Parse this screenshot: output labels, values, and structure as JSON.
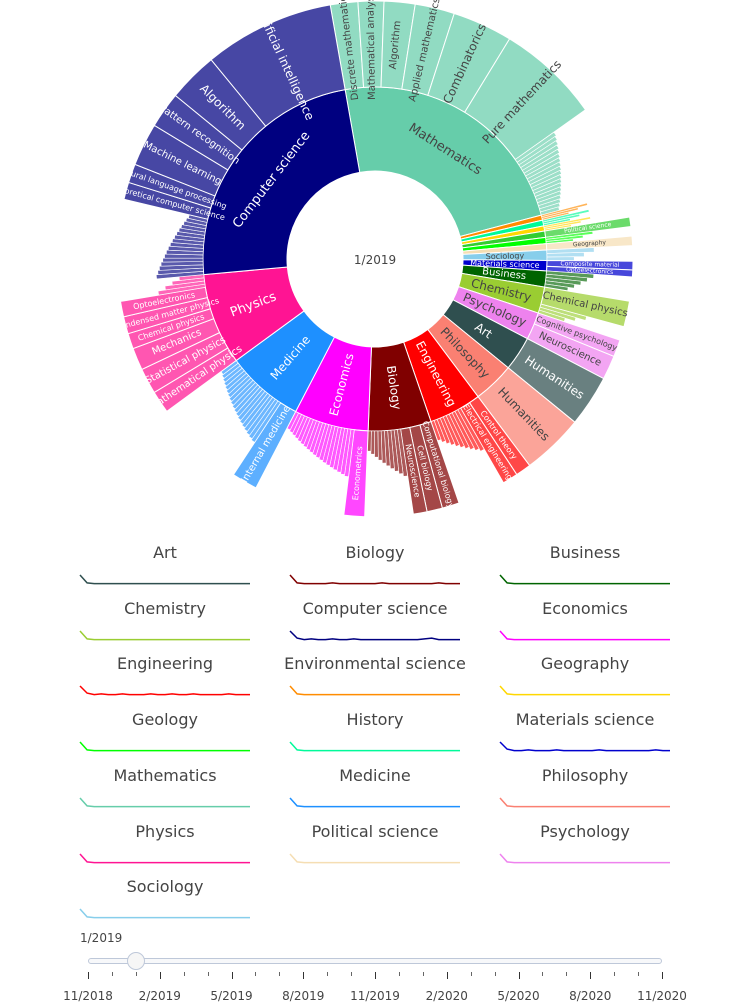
{
  "chart_data": [
    {
      "type": "sunburst",
      "center_label": "1/2019",
      "title": "",
      "categories": [
        {
          "name": "Mathematics",
          "value": 22,
          "color": "#66cdaa",
          "children": [
            {
              "name": "Discrete mathematics",
              "value": 1.6
            },
            {
              "name": "Mathematical analysis",
              "value": 1.5
            },
            {
              "name": "Algorithm",
              "value": 1.8
            },
            {
              "name": "Applied mathematics",
              "value": 2.3
            },
            {
              "name": "Combinatorics",
              "value": 3.5
            },
            {
              "name": "Pure mathematics",
              "value": 6.0
            },
            {
              "name": "",
              "value": 5.3
            }
          ]
        },
        {
          "name": "",
          "value": 0.45,
          "color": "#ff8c00",
          "children": [
            {
              "name": "",
              "value": 0.45
            }
          ]
        },
        {
          "name": "",
          "value": 0.5,
          "color": "#00fa9a",
          "children": [
            {
              "name": "",
              "value": 0.5
            }
          ]
        },
        {
          "name": "",
          "value": 0.45,
          "color": "#ffd700",
          "children": [
            {
              "name": "",
              "value": 0.45
            }
          ]
        },
        {
          "name": "",
          "value": 0.55,
          "color": "#32cd32",
          "children": [
            {
              "name": "Political science",
              "value": 0.55
            }
          ]
        },
        {
          "name": "",
          "value": 0.55,
          "color": "#00ff00",
          "children": [
            {
              "name": "",
              "value": 0.55
            }
          ]
        },
        {
          "name": "",
          "value": 0.55,
          "color": "#f5deb3",
          "children": [
            {
              "name": "Geography",
              "value": 0.55
            }
          ]
        },
        {
          "name": "Sociology",
          "value": 0.9,
          "color": "#87ceeb",
          "children": [
            {
              "name": "",
              "value": 0.9
            }
          ]
        },
        {
          "name": "Materials science",
          "value": 0.9,
          "color": "#0000cd",
          "children": [
            {
              "name": "Composite material",
              "value": 0.5
            },
            {
              "name": "Optoelectronics",
              "value": 0.4
            }
          ]
        },
        {
          "name": "Business",
          "value": 1.4,
          "color": "#006400",
          "children": [
            {
              "name": "",
              "value": 1.4
            }
          ]
        },
        {
          "name": "Chemistry",
          "value": 2.3,
          "color": "#9acd32",
          "children": [
            {
              "name": "Chemical physics",
              "value": 1.5
            },
            {
              "name": "",
              "value": 0.8
            }
          ]
        },
        {
          "name": "Psychology",
          "value": 2.4,
          "color": "#ee82ee",
          "children": [
            {
              "name": "Cognitive psychology",
              "value": 1.0
            },
            {
              "name": "Neuroscience",
              "value": 1.4
            }
          ]
        },
        {
          "name": "Art",
          "value": 3.0,
          "color": "#2f4f4f",
          "children": [
            {
              "name": "Humanities",
              "value": 3.0
            }
          ]
        },
        {
          "name": "Philosophy",
          "value": 3.6,
          "color": "#fa8072",
          "children": [
            {
              "name": "Humanities",
              "value": 3.6
            }
          ]
        },
        {
          "name": "Engineering",
          "value": 4.6,
          "color": "#ff0000",
          "children": [
            {
              "name": "Control theory",
              "value": 0.9
            },
            {
              "name": "Electrical engineering",
              "value": 0.9
            },
            {
              "name": "",
              "value": 2.8
            }
          ]
        },
        {
          "name": "Biology",
          "value": 5.5,
          "color": "#800000",
          "children": [
            {
              "name": "Computational biology",
              "value": 1.0
            },
            {
              "name": "Cell biology",
              "value": 0.9
            },
            {
              "name": "Neuroscience",
              "value": 0.8
            },
            {
              "name": "",
              "value": 2.8
            }
          ]
        },
        {
          "name": "Economics",
          "value": 6.5,
          "color": "#ff00ff",
          "children": [
            {
              "name": "Econometrics",
              "value": 1.2
            },
            {
              "name": "",
              "value": 5.3
            }
          ]
        },
        {
          "name": "Medicine",
          "value": 6.8,
          "color": "#1e90ff",
          "children": [
            {
              "name": "Internal medicine",
              "value": 1.5
            },
            {
              "name": "",
              "value": 5.3
            }
          ]
        },
        {
          "name": "Physics",
          "value": 8.0,
          "color": "#ff1493",
          "children": [
            {
              "name": "Mathematical physics",
              "value": 1.3
            },
            {
              "name": "Statistical physics",
              "value": 1.5
            },
            {
              "name": "Mechanics",
              "value": 1.3
            },
            {
              "name": "Chemical physics",
              "value": 0.9
            },
            {
              "name": "Condensed matter physics",
              "value": 1.0
            },
            {
              "name": "Optoelectronics",
              "value": 0.9
            },
            {
              "name": "",
              "value": 1.1
            }
          ]
        },
        {
          "name": "Computer science",
          "value": 22,
          "color": "#000080",
          "children": [
            {
              "name": "",
              "value": 4.8
            },
            {
              "name": "Theoretical computer science",
              "value": 1.0
            },
            {
              "name": "Natural language processing",
              "value": 1.1
            },
            {
              "name": "Machine learning",
              "value": 2.5
            },
            {
              "name": "Pattern recognition",
              "value": 2.1
            },
            {
              "name": "Algorithm",
              "value": 2.9
            },
            {
              "name": "Artificial intelligence",
              "value": 7.6
            }
          ]
        }
      ]
    },
    {
      "type": "line",
      "title": "",
      "series": [
        {
          "name": "Art",
          "color": "#2f4f4f",
          "values": [
            14,
            3,
            2,
            2,
            2,
            2,
            2,
            2,
            2,
            2,
            2,
            2,
            2,
            2,
            2,
            2,
            2,
            2,
            2,
            2,
            2,
            2,
            2,
            2,
            2
          ]
        },
        {
          "name": "Biology",
          "color": "#800000",
          "values": [
            14,
            3,
            2,
            2,
            2,
            2,
            3,
            2,
            2,
            2,
            2,
            2,
            2,
            3,
            2,
            2,
            2,
            2,
            2,
            2,
            2,
            3,
            2,
            2,
            2
          ]
        },
        {
          "name": "Business",
          "color": "#006400",
          "values": [
            14,
            3,
            2,
            2,
            2,
            2,
            2,
            2,
            2,
            2,
            2,
            2,
            2,
            2,
            2,
            2,
            2,
            2,
            2,
            2,
            2,
            2,
            2,
            2,
            2
          ]
        },
        {
          "name": "Chemistry",
          "color": "#9acd32",
          "values": [
            14,
            3,
            2,
            2,
            2,
            2,
            2,
            2,
            2,
            2,
            2,
            2,
            2,
            2,
            2,
            2,
            2,
            2,
            2,
            2,
            2,
            2,
            2,
            2,
            2
          ]
        },
        {
          "name": "Computer science",
          "color": "#000080",
          "values": [
            14,
            4,
            2,
            3,
            2,
            2,
            3,
            2,
            2,
            3,
            2,
            2,
            2,
            2,
            2,
            2,
            2,
            2,
            2,
            3,
            4,
            2,
            2,
            2,
            2
          ]
        },
        {
          "name": "Economics",
          "color": "#ff00ff",
          "values": [
            14,
            3,
            2,
            2,
            2,
            2,
            2,
            2,
            2,
            2,
            2,
            2,
            2,
            2,
            2,
            2,
            2,
            2,
            2,
            2,
            2,
            2,
            2,
            2,
            2
          ]
        },
        {
          "name": "Engineering",
          "color": "#ff0000",
          "values": [
            14,
            4,
            2,
            3,
            2,
            2,
            3,
            2,
            2,
            2,
            3,
            2,
            2,
            3,
            2,
            2,
            3,
            2,
            2,
            2,
            2,
            3,
            2,
            2,
            2
          ]
        },
        {
          "name": "Environmental science",
          "color": "#ff8c00",
          "values": [
            14,
            3,
            2,
            2,
            2,
            2,
            2,
            2,
            2,
            2,
            2,
            2,
            2,
            2,
            2,
            2,
            2,
            2,
            2,
            2,
            2,
            2,
            2,
            2,
            2
          ]
        },
        {
          "name": "Geography",
          "color": "#ffd700",
          "values": [
            14,
            3,
            2,
            2,
            2,
            2,
            2,
            2,
            2,
            2,
            2,
            2,
            2,
            2,
            2,
            2,
            2,
            2,
            2,
            2,
            2,
            2,
            2,
            2,
            2
          ]
        },
        {
          "name": "Geology",
          "color": "#00ff00",
          "values": [
            14,
            3,
            2,
            2,
            2,
            2,
            2,
            2,
            2,
            2,
            2,
            2,
            2,
            2,
            2,
            2,
            2,
            2,
            2,
            2,
            2,
            2,
            2,
            2,
            2
          ]
        },
        {
          "name": "History",
          "color": "#00fa9a",
          "values": [
            14,
            3,
            2,
            2,
            2,
            2,
            2,
            2,
            2,
            2,
            2,
            2,
            2,
            2,
            2,
            2,
            2,
            2,
            2,
            2,
            2,
            2,
            2,
            2,
            2
          ]
        },
        {
          "name": "Materials science",
          "color": "#0000cd",
          "values": [
            14,
            4,
            2,
            2,
            3,
            2,
            2,
            2,
            3,
            2,
            2,
            2,
            2,
            2,
            3,
            2,
            2,
            2,
            2,
            2,
            2,
            2,
            3,
            2,
            2
          ]
        },
        {
          "name": "Mathematics",
          "color": "#66cdaa",
          "values": [
            14,
            3,
            2,
            2,
            2,
            2,
            2,
            2,
            2,
            2,
            2,
            2,
            2,
            2,
            2,
            2,
            2,
            2,
            2,
            2,
            2,
            2,
            2,
            2,
            2
          ]
        },
        {
          "name": "Medicine",
          "color": "#1e90ff",
          "values": [
            14,
            3,
            2,
            2,
            2,
            2,
            2,
            2,
            2,
            2,
            2,
            2,
            2,
            2,
            2,
            2,
            2,
            2,
            2,
            2,
            2,
            2,
            2,
            2,
            2
          ]
        },
        {
          "name": "Philosophy",
          "color": "#fa8072",
          "values": [
            14,
            3,
            2,
            2,
            2,
            2,
            2,
            2,
            2,
            2,
            2,
            2,
            2,
            2,
            2,
            2,
            2,
            2,
            2,
            2,
            2,
            2,
            2,
            2,
            2
          ]
        },
        {
          "name": "Physics",
          "color": "#ff1493",
          "values": [
            14,
            3,
            2,
            2,
            2,
            2,
            2,
            2,
            2,
            2,
            2,
            2,
            2,
            2,
            2,
            2,
            2,
            2,
            2,
            2,
            2,
            2,
            2,
            2,
            2
          ]
        },
        {
          "name": "Political science",
          "color": "#f5deb3",
          "values": [
            14,
            3,
            2,
            2,
            2,
            2,
            2,
            2,
            2,
            2,
            2,
            2,
            2,
            2,
            2,
            2,
            2,
            2,
            2,
            2,
            2,
            2,
            2,
            2,
            2
          ]
        },
        {
          "name": "Psychology",
          "color": "#ee82ee",
          "values": [
            14,
            3,
            2,
            2,
            2,
            2,
            2,
            2,
            2,
            2,
            2,
            2,
            2,
            2,
            2,
            2,
            2,
            2,
            2,
            2,
            2,
            2,
            2,
            2,
            2
          ]
        },
        {
          "name": "Sociology",
          "color": "#87ceeb",
          "values": [
            14,
            3,
            2,
            2,
            2,
            2,
            2,
            2,
            2,
            2,
            2,
            2,
            2,
            2,
            2,
            2,
            2,
            2,
            2,
            2,
            2,
            2,
            2,
            2,
            2
          ]
        }
      ]
    }
  ],
  "slider": {
    "current_value": "1/2019",
    "position_fraction": 0.084,
    "ticks": [
      "11/2018",
      "2/2019",
      "5/2019",
      "8/2019",
      "11/2019",
      "2/2020",
      "5/2020",
      "8/2020",
      "11/2020"
    ]
  }
}
